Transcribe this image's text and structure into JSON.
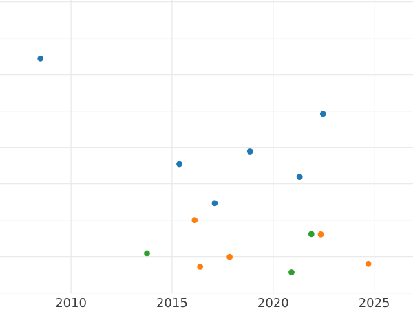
{
  "chart_data": {
    "type": "scatter",
    "title": "",
    "xlabel": "",
    "ylabel": "",
    "x_tick_labels": [
      "2010",
      "2015",
      "2020",
      "2025"
    ],
    "x_ticks": [
      2010,
      2015,
      2020,
      2025
    ],
    "x_range": [
      2006.49,
      2026.92
    ],
    "y_range": [
      -0.44,
      8.05
    ],
    "y_gridlines": [
      0,
      1,
      2,
      3,
      4,
      5,
      6,
      7,
      8
    ],
    "grid": true,
    "legend_position": "none",
    "marker_radius_px": 4.4,
    "colors": {
      "background": "#ffffff",
      "grid": "#e7e7e7",
      "tick_label": "#3d3d3d",
      "series_blue": "#1f77b4",
      "series_orange": "#ff7f0e",
      "series_green": "#2ca02c"
    },
    "series": [
      {
        "name": "series-blue",
        "color": "#1f77b4",
        "points": [
          [
            2008.49,
            6.44
          ],
          [
            2015.36,
            3.54
          ],
          [
            2017.11,
            2.47
          ],
          [
            2018.86,
            3.89
          ],
          [
            2021.31,
            3.19
          ],
          [
            2022.47,
            4.92
          ]
        ]
      },
      {
        "name": "series-orange",
        "color": "#ff7f0e",
        "points": [
          [
            2016.12,
            2.0
          ],
          [
            2016.39,
            0.72
          ],
          [
            2017.85,
            0.99
          ],
          [
            2022.36,
            1.61
          ],
          [
            2024.71,
            0.8
          ]
        ]
      },
      {
        "name": "series-green",
        "color": "#2ca02c",
        "points": [
          [
            2013.76,
            1.09
          ],
          [
            2020.91,
            0.57
          ],
          [
            2021.89,
            1.62
          ]
        ]
      }
    ]
  }
}
